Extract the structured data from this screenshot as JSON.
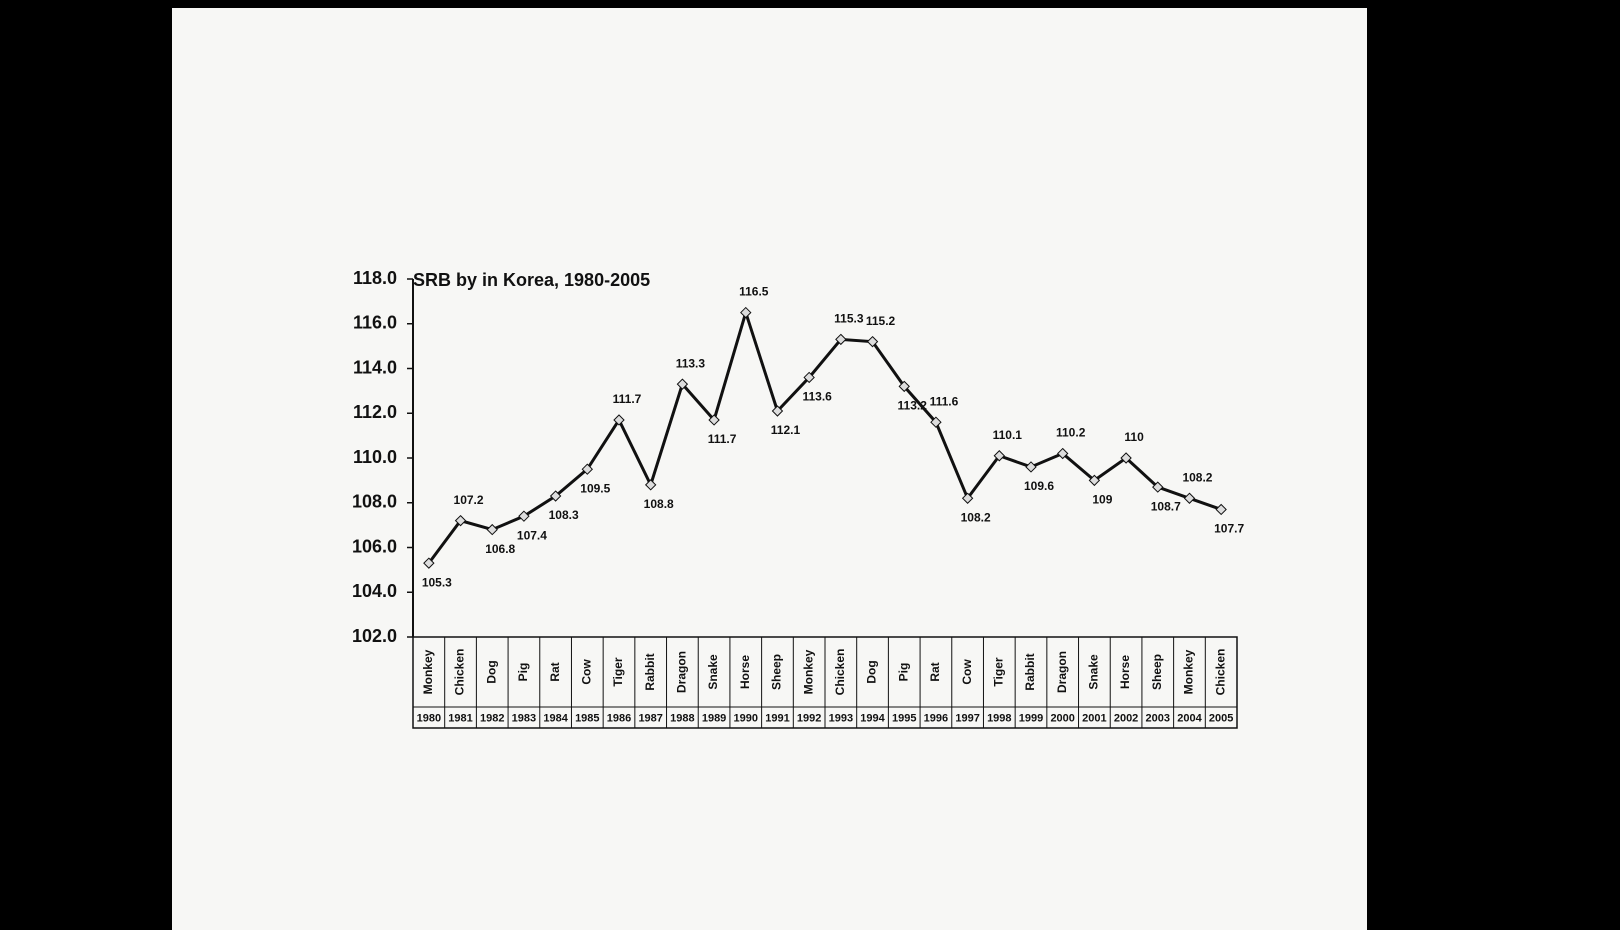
{
  "chart_data": {
    "type": "line",
    "title": "SRB by in Korea, 1980-2005",
    "categories": [
      "1980",
      "1981",
      "1982",
      "1983",
      "1984",
      "1985",
      "1986",
      "1987",
      "1988",
      "1989",
      "1990",
      "1991",
      "1992",
      "1993",
      "1994",
      "1995",
      "1996",
      "1997",
      "1998",
      "1999",
      "2000",
      "2001",
      "2002",
      "2003",
      "2004",
      "2005"
    ],
    "zodiac": [
      "Monkey",
      "Chicken",
      "Dog",
      "Pig",
      "Rat",
      "Cow",
      "Tiger",
      "Rabbit",
      "Dragon",
      "Snake",
      "Horse",
      "Sheep",
      "Monkey",
      "Chicken",
      "Dog",
      "Pig",
      "Rat",
      "Cow",
      "Tiger",
      "Rabbit",
      "Dragon",
      "Snake",
      "Horse",
      "Sheep",
      "Monkey",
      "Chicken"
    ],
    "values": [
      105.3,
      107.2,
      106.8,
      107.4,
      108.3,
      109.5,
      111.7,
      108.8,
      113.3,
      111.7,
      116.5,
      112.1,
      113.6,
      115.3,
      115.2,
      113.2,
      111.6,
      108.2,
      110.1,
      109.6,
      110.2,
      109.0,
      110.0,
      108.7,
      108.2,
      107.7
    ],
    "color": "#111111",
    "ylim": [
      102,
      118
    ],
    "yticks": [
      {
        "value": 102,
        "label": "102.0"
      },
      {
        "value": 104,
        "label": "104.0"
      },
      {
        "value": 106,
        "label": "106.0"
      },
      {
        "value": 108,
        "label": "108.0"
      },
      {
        "value": 110,
        "label": "110.0"
      },
      {
        "value": 112,
        "label": "112.0"
      },
      {
        "value": 114,
        "label": "114.0"
      },
      {
        "value": 116,
        "label": "116.0"
      },
      {
        "value": 118,
        "label": "118.0"
      }
    ]
  }
}
